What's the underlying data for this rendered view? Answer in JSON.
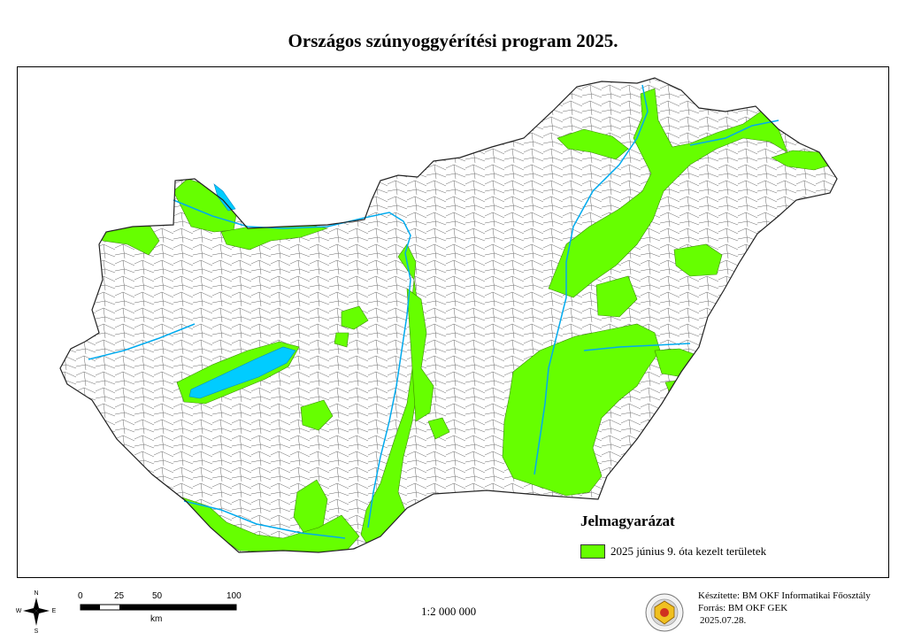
{
  "title": "Országos szúnyoggyérítési program 2025.",
  "legend": {
    "title": "Jelmagyarázat",
    "item_label": "2025 június 9. óta kezelt területek",
    "item_color": "#66ff00"
  },
  "scale_bar": {
    "ticks": [
      "0",
      "25",
      "50",
      "100"
    ],
    "unit": "km"
  },
  "scale_ratio": "1:2 000 000",
  "compass": {
    "n": "N",
    "s": "S",
    "e": "E",
    "w": "W"
  },
  "credits": {
    "line1": "Készítette: BM OKF Informatikai Főosztály",
    "line2": "Forrás: BM OKF GEK",
    "date": "2025.07.28."
  },
  "colors": {
    "treated": "#66ff00",
    "water": "#00ccff",
    "outline": "#444444",
    "map_bg": "#ffffff"
  },
  "icons": [
    "compass-rose-icon",
    "agency-logo-icon"
  ]
}
